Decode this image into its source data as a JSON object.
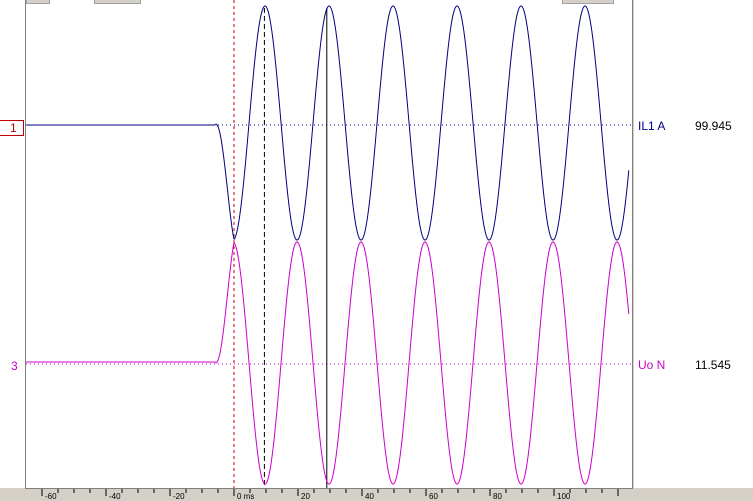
{
  "channels": [
    {
      "marker": "1",
      "name": "IL1 A",
      "value": "99.945",
      "color": "#000080"
    },
    {
      "marker": "3",
      "name": "Uo N",
      "value": "11.545",
      "color": "#cc00cc"
    }
  ],
  "time_axis": {
    "ticks": [
      "-60",
      "-40",
      "-20",
      "0 ms",
      "20",
      "40",
      "60",
      "80",
      "100"
    ],
    "unit": "ms"
  },
  "cursors": {
    "red_cursor_ms": 0,
    "dashed_cursor_ms": 9.5,
    "solid_cursor_ms": 29
  },
  "chart_data": {
    "type": "line",
    "xlim": [
      -66,
      121
    ],
    "series": [
      {
        "name": "IL1 A",
        "pre_fault_level": "steady",
        "fault_start_ms": -6,
        "period_ms": 20
      },
      {
        "name": "Uo N",
        "pre_fault_level": "steady",
        "fault_start_ms": -6,
        "period_ms": 20
      }
    ]
  }
}
